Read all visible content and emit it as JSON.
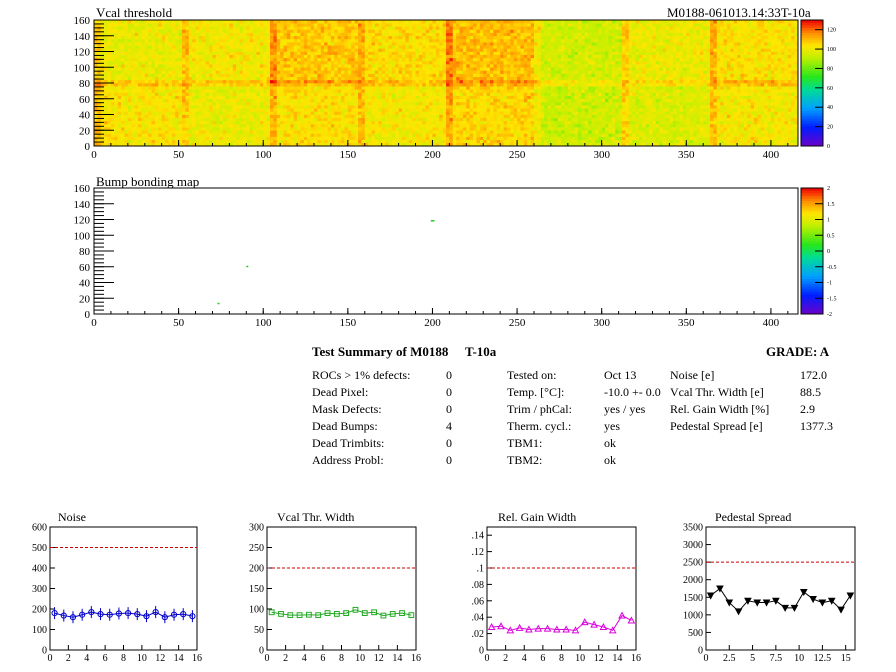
{
  "header": {
    "heatmap_title": "Vcal threshold",
    "module_id": "M0188-061013.14:33T-10a",
    "bump_title": "Bump bonding map"
  },
  "summary": {
    "title": "Test Summary of M0188",
    "temperature_tag": "T-10a",
    "grade": "GRADE:  A",
    "left_rows": [
      {
        "label": "ROCs > 1% defects:",
        "value": "0"
      },
      {
        "label": "Dead Pixel:",
        "value": "0"
      },
      {
        "label": "Mask Defects:",
        "value": "0"
      },
      {
        "label": "Dead Bumps:",
        "value": "4"
      },
      {
        "label": "Dead Trimbits:",
        "value": "0"
      },
      {
        "label": "Address Probl:",
        "value": "0"
      }
    ],
    "middle_rows": [
      {
        "label": "Tested on:",
        "value": "Oct 13"
      },
      {
        "label": "Temp. [°C]:",
        "value": "-10.0 +- 0.0"
      },
      {
        "label": "Trim / phCal:",
        "value": "yes / yes"
      },
      {
        "label": "Therm. cycl.:",
        "value": "yes"
      },
      {
        "label": "TBM1:",
        "value": "ok"
      },
      {
        "label": "TBM2:",
        "value": "ok"
      }
    ],
    "right_rows": [
      {
        "label": "Noise [e]",
        "value": "172.0"
      },
      {
        "label": "Vcal Thr. Width [e]",
        "value": "88.5"
      },
      {
        "label": "Rel. Gain Width [%]",
        "value": "2.9"
      },
      {
        "label": "Pedestal Spread [e]",
        "value": "1377.3"
      }
    ]
  },
  "colors": {
    "noise": "#0000cc",
    "vcal": "#22aa22",
    "gain": "#dd00dd",
    "pedestal": "#000000",
    "limit": "#cc0000"
  },
  "chart_data": [
    {
      "type": "heatmap",
      "title": "Vcal threshold",
      "x_ticks": [
        0,
        50,
        100,
        150,
        200,
        250,
        300,
        350,
        400
      ],
      "y_ticks": [
        0,
        20,
        40,
        60,
        80,
        100,
        120,
        140,
        160
      ],
      "xlim": [
        0,
        416
      ],
      "ylim": [
        0,
        160
      ],
      "roc_grid": {
        "columns": 8,
        "rows": 2,
        "roc_width": 52,
        "roc_height": 80
      },
      "roc_mean_thresholds": [
        [
          100,
          102,
          108,
          105,
          110,
          95,
          100,
          104
        ],
        [
          103,
          100,
          104,
          102,
          106,
          94,
          97,
          102
        ]
      ],
      "colorbar_ticks": [
        0,
        20,
        40,
        60,
        80,
        100,
        120
      ],
      "colorbar_range": [
        0,
        130
      ]
    },
    {
      "type": "heatmap",
      "title": "Bump bonding map",
      "x_ticks": [
        0,
        50,
        100,
        150,
        200,
        250,
        300,
        350,
        400
      ],
      "y_ticks": [
        0,
        20,
        40,
        60,
        80,
        100,
        120,
        140,
        160
      ],
      "xlim": [
        0,
        416
      ],
      "ylim": [
        0,
        160
      ],
      "dead_bumps": [
        [
          73,
          13
        ],
        [
          90,
          60
        ],
        [
          199,
          118
        ],
        [
          200,
          118
        ]
      ],
      "colorbar_ticks": [
        2,
        1.5,
        1,
        0.5,
        0,
        -0.5,
        -1,
        -1.5,
        -2
      ],
      "colorbar_range": [
        -2,
        2
      ]
    },
    {
      "type": "line",
      "title": "Noise",
      "x_ticks": [
        0,
        2,
        4,
        6,
        8,
        10,
        12,
        14,
        16
      ],
      "y_ticks": [
        0,
        100,
        200,
        300,
        400,
        500,
        600
      ],
      "xlim": [
        0,
        16
      ],
      "ylim": [
        0,
        600
      ],
      "limit": 500,
      "marker": "circle",
      "x": [
        0.5,
        1.5,
        2.5,
        3.5,
        4.5,
        5.5,
        6.5,
        7.5,
        8.5,
        9.5,
        10.5,
        11.5,
        12.5,
        13.5,
        14.5,
        15.5
      ],
      "values": [
        180,
        168,
        160,
        172,
        185,
        175,
        172,
        178,
        180,
        175,
        165,
        185,
        160,
        172,
        175,
        165
      ]
    },
    {
      "type": "line",
      "title": "Vcal Thr. Width",
      "x_ticks": [
        0,
        2,
        4,
        6,
        8,
        10,
        12,
        14,
        16
      ],
      "y_ticks": [
        0,
        50,
        100,
        150,
        200,
        250,
        300
      ],
      "xlim": [
        0,
        16
      ],
      "ylim": [
        0,
        300
      ],
      "limit": 200,
      "marker": "square",
      "x": [
        0.5,
        1.5,
        2.5,
        3.5,
        4.5,
        5.5,
        6.5,
        7.5,
        8.5,
        9.5,
        10.5,
        11.5,
        12.5,
        13.5,
        14.5,
        15.5
      ],
      "values": [
        92,
        88,
        85,
        85,
        86,
        85,
        90,
        88,
        90,
        98,
        90,
        92,
        84,
        88,
        90,
        85
      ]
    },
    {
      "type": "line",
      "title": "Rel. Gain Width",
      "x_ticks": [
        0,
        2,
        4,
        6,
        8,
        10,
        12,
        14,
        16
      ],
      "y_ticks": [
        0,
        0.02,
        0.04,
        0.06,
        0.08,
        0.1,
        0.12,
        0.14
      ],
      "xlim": [
        0,
        16
      ],
      "ylim": [
        0,
        0.15
      ],
      "limit": 0.1,
      "marker": "triangle",
      "x": [
        0.5,
        1.5,
        2.5,
        3.5,
        4.5,
        5.5,
        6.5,
        7.5,
        8.5,
        9.5,
        10.5,
        11.5,
        12.5,
        13.5,
        14.5,
        15.5
      ],
      "values": [
        0.028,
        0.029,
        0.024,
        0.027,
        0.025,
        0.026,
        0.026,
        0.025,
        0.025,
        0.024,
        0.034,
        0.031,
        0.028,
        0.024,
        0.042,
        0.036
      ]
    },
    {
      "type": "line",
      "title": "Pedestal Spread",
      "x_ticks": [
        0,
        2.5,
        5,
        7.5,
        10,
        12.5,
        15
      ],
      "y_ticks": [
        0,
        500,
        1000,
        1500,
        2000,
        2500,
        3000,
        3500
      ],
      "xlim": [
        0,
        16
      ],
      "ylim": [
        0,
        3500
      ],
      "limit": 2500,
      "marker": "triangle-down",
      "x": [
        0.5,
        1.5,
        2.5,
        3.5,
        4.5,
        5.5,
        6.5,
        7.5,
        8.5,
        9.5,
        10.5,
        11.5,
        12.5,
        13.5,
        14.5,
        15.5
      ],
      "values": [
        1550,
        1750,
        1350,
        1100,
        1400,
        1350,
        1350,
        1400,
        1200,
        1200,
        1650,
        1450,
        1350,
        1400,
        1150,
        1550
      ]
    }
  ]
}
